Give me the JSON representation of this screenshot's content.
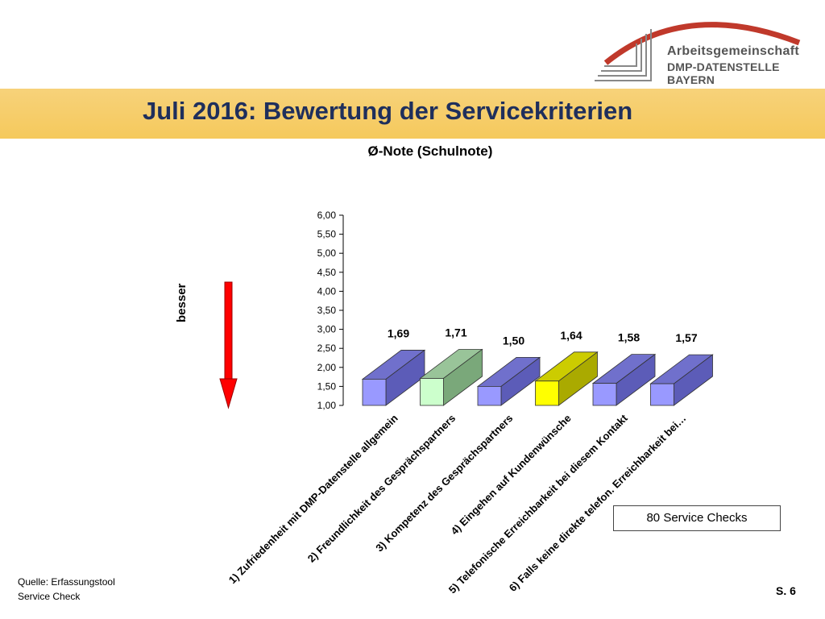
{
  "header": {
    "org_line1": "Arbeitsgemeinschaft",
    "org_line2": "DMP-DATENSTELLE BAYERN",
    "title": "Juli 2016: Bewertung der Servicekriterien"
  },
  "chart_data": {
    "type": "bar",
    "title": "Ø-Note (Schulnote)",
    "xlabel": "",
    "ylabel": "",
    "ylim": [
      1.0,
      6.0
    ],
    "yticks": [
      "1,00",
      "1,50",
      "2,00",
      "2,50",
      "3,00",
      "3,50",
      "4,00",
      "4,50",
      "5,00",
      "5,50",
      "6,00"
    ],
    "categories": [
      "1) Zufriedenheit mit DMP-Datenstelle allgemein",
      "2) Freundlichkeit des Gesprächspartners",
      "3) Kompetenz des Gesprächspartners",
      "4) Eingehen auf Kundenwünsche",
      "5) Telefonische Erreichbarkeit bei diesem Kontakt",
      "6) Falls keine direkte telefon. Erreichbarkeit bei…"
    ],
    "values": [
      1.69,
      1.71,
      1.5,
      1.64,
      1.58,
      1.57
    ],
    "value_labels": [
      "1,69",
      "1,71",
      "1,50",
      "1,64",
      "1,58",
      "1,57"
    ],
    "bar_colors": [
      {
        "front": "#9999ff",
        "side": "#5c5cb8",
        "top": "#7070cc"
      },
      {
        "front": "#ccffcc",
        "side": "#7aa87a",
        "top": "#99c499"
      },
      {
        "front": "#9999ff",
        "side": "#5c5cb8",
        "top": "#7070cc"
      },
      {
        "front": "#ffff00",
        "side": "#aaaa00",
        "top": "#cccc00"
      },
      {
        "front": "#9999ff",
        "side": "#5c5cb8",
        "top": "#7070cc"
      },
      {
        "front": "#9999ff",
        "side": "#5c5cb8",
        "top": "#7070cc"
      }
    ],
    "grid": false,
    "legend": "none"
  },
  "annotation": {
    "arrow_label": "besser",
    "arrow_color": "#ff0000",
    "box_text": "80 Service Checks"
  },
  "footer": {
    "source_line1": "Quelle: Erfassungstool",
    "source_line2": "Service Check",
    "page": "S. 6"
  }
}
